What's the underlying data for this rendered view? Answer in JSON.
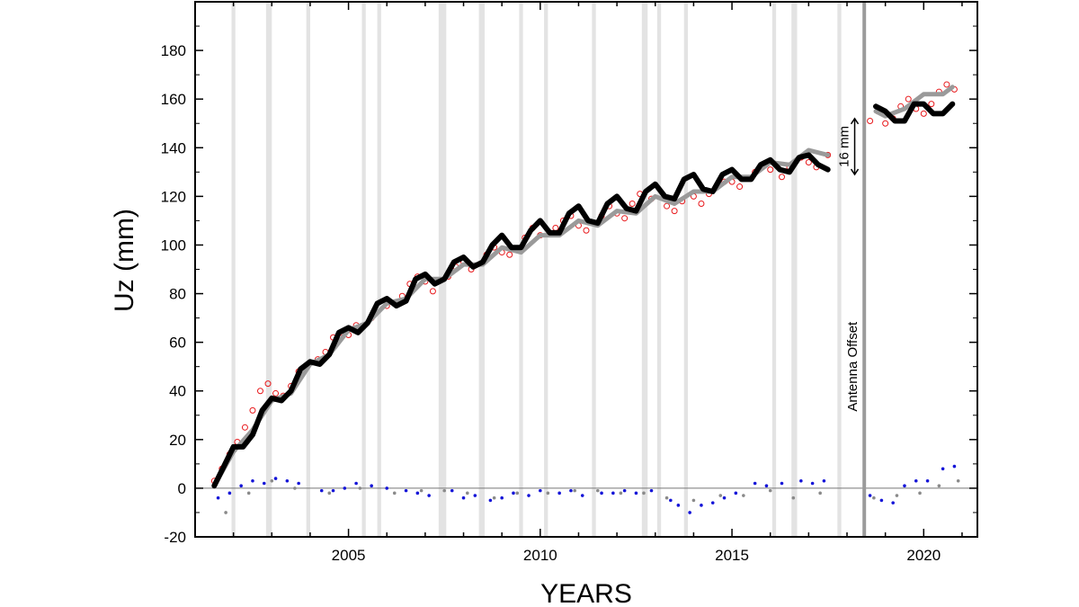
{
  "chart_data": {
    "type": "scatter",
    "title": "",
    "xlabel": "YEARS",
    "ylabel": "Uz (mm)",
    "xlim": [
      2001.0,
      2021.4
    ],
    "ylim": [
      -20,
      200
    ],
    "x_ticks": [
      2005,
      2010,
      2015,
      2020
    ],
    "y_ticks": [
      -20,
      0,
      20,
      40,
      60,
      80,
      100,
      120,
      140,
      160,
      180
    ],
    "grid": false,
    "legend": "none",
    "colors": {
      "observed": "#e8191c",
      "residual_primary": "#1515d8",
      "residual_secondary": "#8a8a8a",
      "model_black": "#000000",
      "model_gray": "#9a9a9a",
      "gap_band": "#e3e3e3",
      "offset_line": "#9b9b9b"
    },
    "data_gaps": [
      [
        2001.95,
        2002.05
      ],
      [
        2002.85,
        2003.0
      ],
      [
        2003.9,
        2004.0
      ],
      [
        2005.35,
        2005.45
      ],
      [
        2005.75,
        2005.85
      ],
      [
        2007.35,
        2007.55
      ],
      [
        2008.4,
        2008.55
      ],
      [
        2009.45,
        2009.55
      ],
      [
        2010.1,
        2010.2
      ],
      [
        2011.35,
        2011.45
      ],
      [
        2012.65,
        2012.8
      ],
      [
        2013.05,
        2013.15
      ],
      [
        2013.75,
        2013.85
      ],
      [
        2016.05,
        2016.15
      ],
      [
        2016.55,
        2016.7
      ],
      [
        2017.75,
        2017.85
      ]
    ],
    "antenna_offset": {
      "x": 2018.45,
      "label": "Antenna Offset"
    },
    "offset_annotation": {
      "label": "16 mm",
      "x": 2018.2,
      "y_from": 129,
      "y_to": 152
    },
    "series": [
      {
        "role": "observed",
        "marker": "open-circle",
        "x": [
          2001.5,
          2001.7,
          2001.9,
          2002.1,
          2002.3,
          2002.5,
          2002.7,
          2002.9,
          2003.1,
          2003.3,
          2003.5,
          2003.7,
          2004.2,
          2004.4,
          2004.6,
          2004.8,
          2005.0,
          2005.2,
          2005.6,
          2006.0,
          2006.4,
          2006.6,
          2006.8,
          2007.0,
          2007.2,
          2007.6,
          2007.8,
          2008.0,
          2008.2,
          2008.6,
          2008.8,
          2009.0,
          2009.2,
          2009.6,
          2009.8,
          2010.0,
          2010.4,
          2010.6,
          2010.8,
          2011.0,
          2011.2,
          2011.6,
          2011.8,
          2012.0,
          2012.2,
          2012.4,
          2012.6,
          2012.9,
          2013.3,
          2013.5,
          2013.7,
          2014.0,
          2014.2,
          2014.4,
          2014.6,
          2014.8,
          2015.0,
          2015.2,
          2015.6,
          2015.8,
          2016.0,
          2016.3,
          2016.5,
          2016.8,
          2017.0,
          2017.2,
          2017.5,
          2018.6,
          2018.8,
          2019.0,
          2019.2,
          2019.4,
          2019.6,
          2019.8,
          2020.0,
          2020.2,
          2020.4,
          2020.6,
          2020.8
        ],
        "y": [
          3,
          8,
          14,
          19,
          25,
          32,
          40,
          43,
          39,
          38,
          42,
          48,
          53,
          56,
          62,
          64,
          63,
          67,
          70,
          75,
          79,
          84,
          87,
          85,
          81,
          87,
          91,
          93,
          90,
          96,
          99,
          97,
          96,
          103,
          107,
          104,
          107,
          110,
          112,
          108,
          106,
          112,
          116,
          113,
          111,
          117,
          121,
          119,
          116,
          114,
          118,
          120,
          117,
          121,
          124,
          126,
          126,
          124,
          130,
          133,
          131,
          128,
          132,
          136,
          134,
          132,
          137,
          151,
          155,
          150,
          152,
          157,
          160,
          156,
          154,
          158,
          163,
          166,
          164
        ]
      },
      {
        "role": "model_black",
        "marker": "line",
        "x": [
          2001.5,
          2001.75,
          2002.0,
          2002.25,
          2002.5,
          2002.75,
          2003.0,
          2003.25,
          2003.5,
          2003.75,
          2004.0,
          2004.25,
          2004.5,
          2004.75,
          2005.0,
          2005.25,
          2005.5,
          2005.75,
          2006.0,
          2006.25,
          2006.5,
          2006.75,
          2007.0,
          2007.25,
          2007.5,
          2007.75,
          2008.0,
          2008.25,
          2008.5,
          2008.75,
          2009.0,
          2009.25,
          2009.5,
          2009.75,
          2010.0,
          2010.25,
          2010.5,
          2010.75,
          2011.0,
          2011.25,
          2011.5,
          2011.75,
          2012.0,
          2012.25,
          2012.5,
          2012.75,
          2013.0,
          2013.25,
          2013.5,
          2013.75,
          2014.0,
          2014.25,
          2014.5,
          2014.75,
          2015.0,
          2015.25,
          2015.5,
          2015.75,
          2016.0,
          2016.25,
          2016.5,
          2016.75,
          2017.0,
          2017.25,
          2017.5,
          2018.75,
          2019.0,
          2019.25,
          2019.5,
          2019.75,
          2020.0,
          2020.25,
          2020.5,
          2020.75
        ],
        "y": [
          1,
          9,
          17,
          17,
          22,
          32,
          37,
          36,
          40,
          49,
          52,
          51,
          55,
          64,
          66,
          64,
          68,
          76,
          78,
          75,
          77,
          86,
          88,
          84,
          86,
          93,
          95,
          91,
          93,
          100,
          104,
          99,
          99,
          106,
          110,
          105,
          105,
          113,
          116,
          110,
          109,
          117,
          120,
          115,
          114,
          122,
          125,
          120,
          119,
          127,
          129,
          123,
          122,
          129,
          131,
          127,
          127,
          133,
          135,
          131,
          130,
          136,
          137,
          133,
          131,
          157,
          155,
          151,
          151,
          158,
          158,
          154,
          154,
          158
        ]
      },
      {
        "role": "model_gray",
        "marker": "line",
        "x": [
          2001.5,
          2002.0,
          2002.5,
          2003.0,
          2003.5,
          2004.0,
          2004.5,
          2005.0,
          2005.5,
          2006.0,
          2006.5,
          2007.0,
          2007.5,
          2008.0,
          2008.5,
          2009.0,
          2009.5,
          2010.0,
          2010.5,
          2011.0,
          2011.5,
          2012.0,
          2012.5,
          2013.0,
          2013.5,
          2014.0,
          2014.5,
          2015.0,
          2015.5,
          2016.0,
          2016.5,
          2017.0,
          2017.5,
          2018.75,
          2019.0,
          2019.5,
          2020.0,
          2020.5,
          2020.75
        ],
        "y": [
          1,
          15,
          24,
          36,
          39,
          51,
          55,
          65,
          68,
          76,
          78,
          86,
          86,
          92,
          92,
          99,
          97,
          104,
          104,
          110,
          108,
          114,
          113,
          120,
          117,
          122,
          122,
          128,
          128,
          134,
          133,
          139,
          137,
          155,
          153,
          156,
          162,
          162,
          165
        ]
      },
      {
        "role": "residual_primary",
        "marker": "dot",
        "x": [
          2001.6,
          2001.9,
          2002.2,
          2002.5,
          2002.8,
          2003.1,
          2003.4,
          2003.7,
          2004.3,
          2004.6,
          2004.9,
          2005.2,
          2005.6,
          2006.0,
          2006.5,
          2006.8,
          2007.1,
          2007.7,
          2008.0,
          2008.3,
          2008.7,
          2009.0,
          2009.3,
          2009.7,
          2010.0,
          2010.5,
          2010.8,
          2011.1,
          2011.6,
          2011.9,
          2012.2,
          2012.5,
          2012.9,
          2013.4,
          2013.6,
          2013.9,
          2014.2,
          2014.5,
          2014.8,
          2015.1,
          2015.6,
          2015.9,
          2016.3,
          2016.8,
          2017.1,
          2017.4,
          2018.6,
          2018.9,
          2019.2,
          2019.5,
          2019.8,
          2020.1,
          2020.5,
          2020.8
        ],
        "y": [
          -4,
          -2,
          1,
          3,
          2,
          4,
          3,
          2,
          -1,
          -1,
          0,
          2,
          1,
          0,
          -1,
          -2,
          -3,
          -1,
          -4,
          -3,
          -5,
          -4,
          -2,
          -3,
          -1,
          -2,
          -1,
          -3,
          -2,
          -2,
          -1,
          -2,
          -1,
          -5,
          -7,
          -10,
          -7,
          -6,
          -4,
          -2,
          2,
          1,
          2,
          3,
          2,
          3,
          -3,
          -5,
          -6,
          1,
          3,
          3,
          8,
          9
        ]
      },
      {
        "role": "residual_secondary",
        "marker": "dot",
        "x": [
          2001.8,
          2002.4,
          2003.0,
          2003.6,
          2004.5,
          2005.3,
          2006.2,
          2006.9,
          2007.5,
          2008.1,
          2008.8,
          2009.4,
          2010.2,
          2010.9,
          2011.5,
          2012.1,
          2012.7,
          2013.3,
          2014.0,
          2014.7,
          2015.3,
          2016.0,
          2016.6,
          2017.3,
          2018.7,
          2019.3,
          2019.9,
          2020.4,
          2020.9
        ],
        "y": [
          -10,
          -2,
          3,
          0,
          -2,
          0,
          -2,
          -1,
          -1,
          -2,
          -4,
          -2,
          -2,
          -1,
          -1,
          -2,
          -2,
          -4,
          -5,
          -3,
          -3,
          -1,
          -4,
          -2,
          -4,
          -3,
          -2,
          1,
          3
        ]
      }
    ]
  }
}
